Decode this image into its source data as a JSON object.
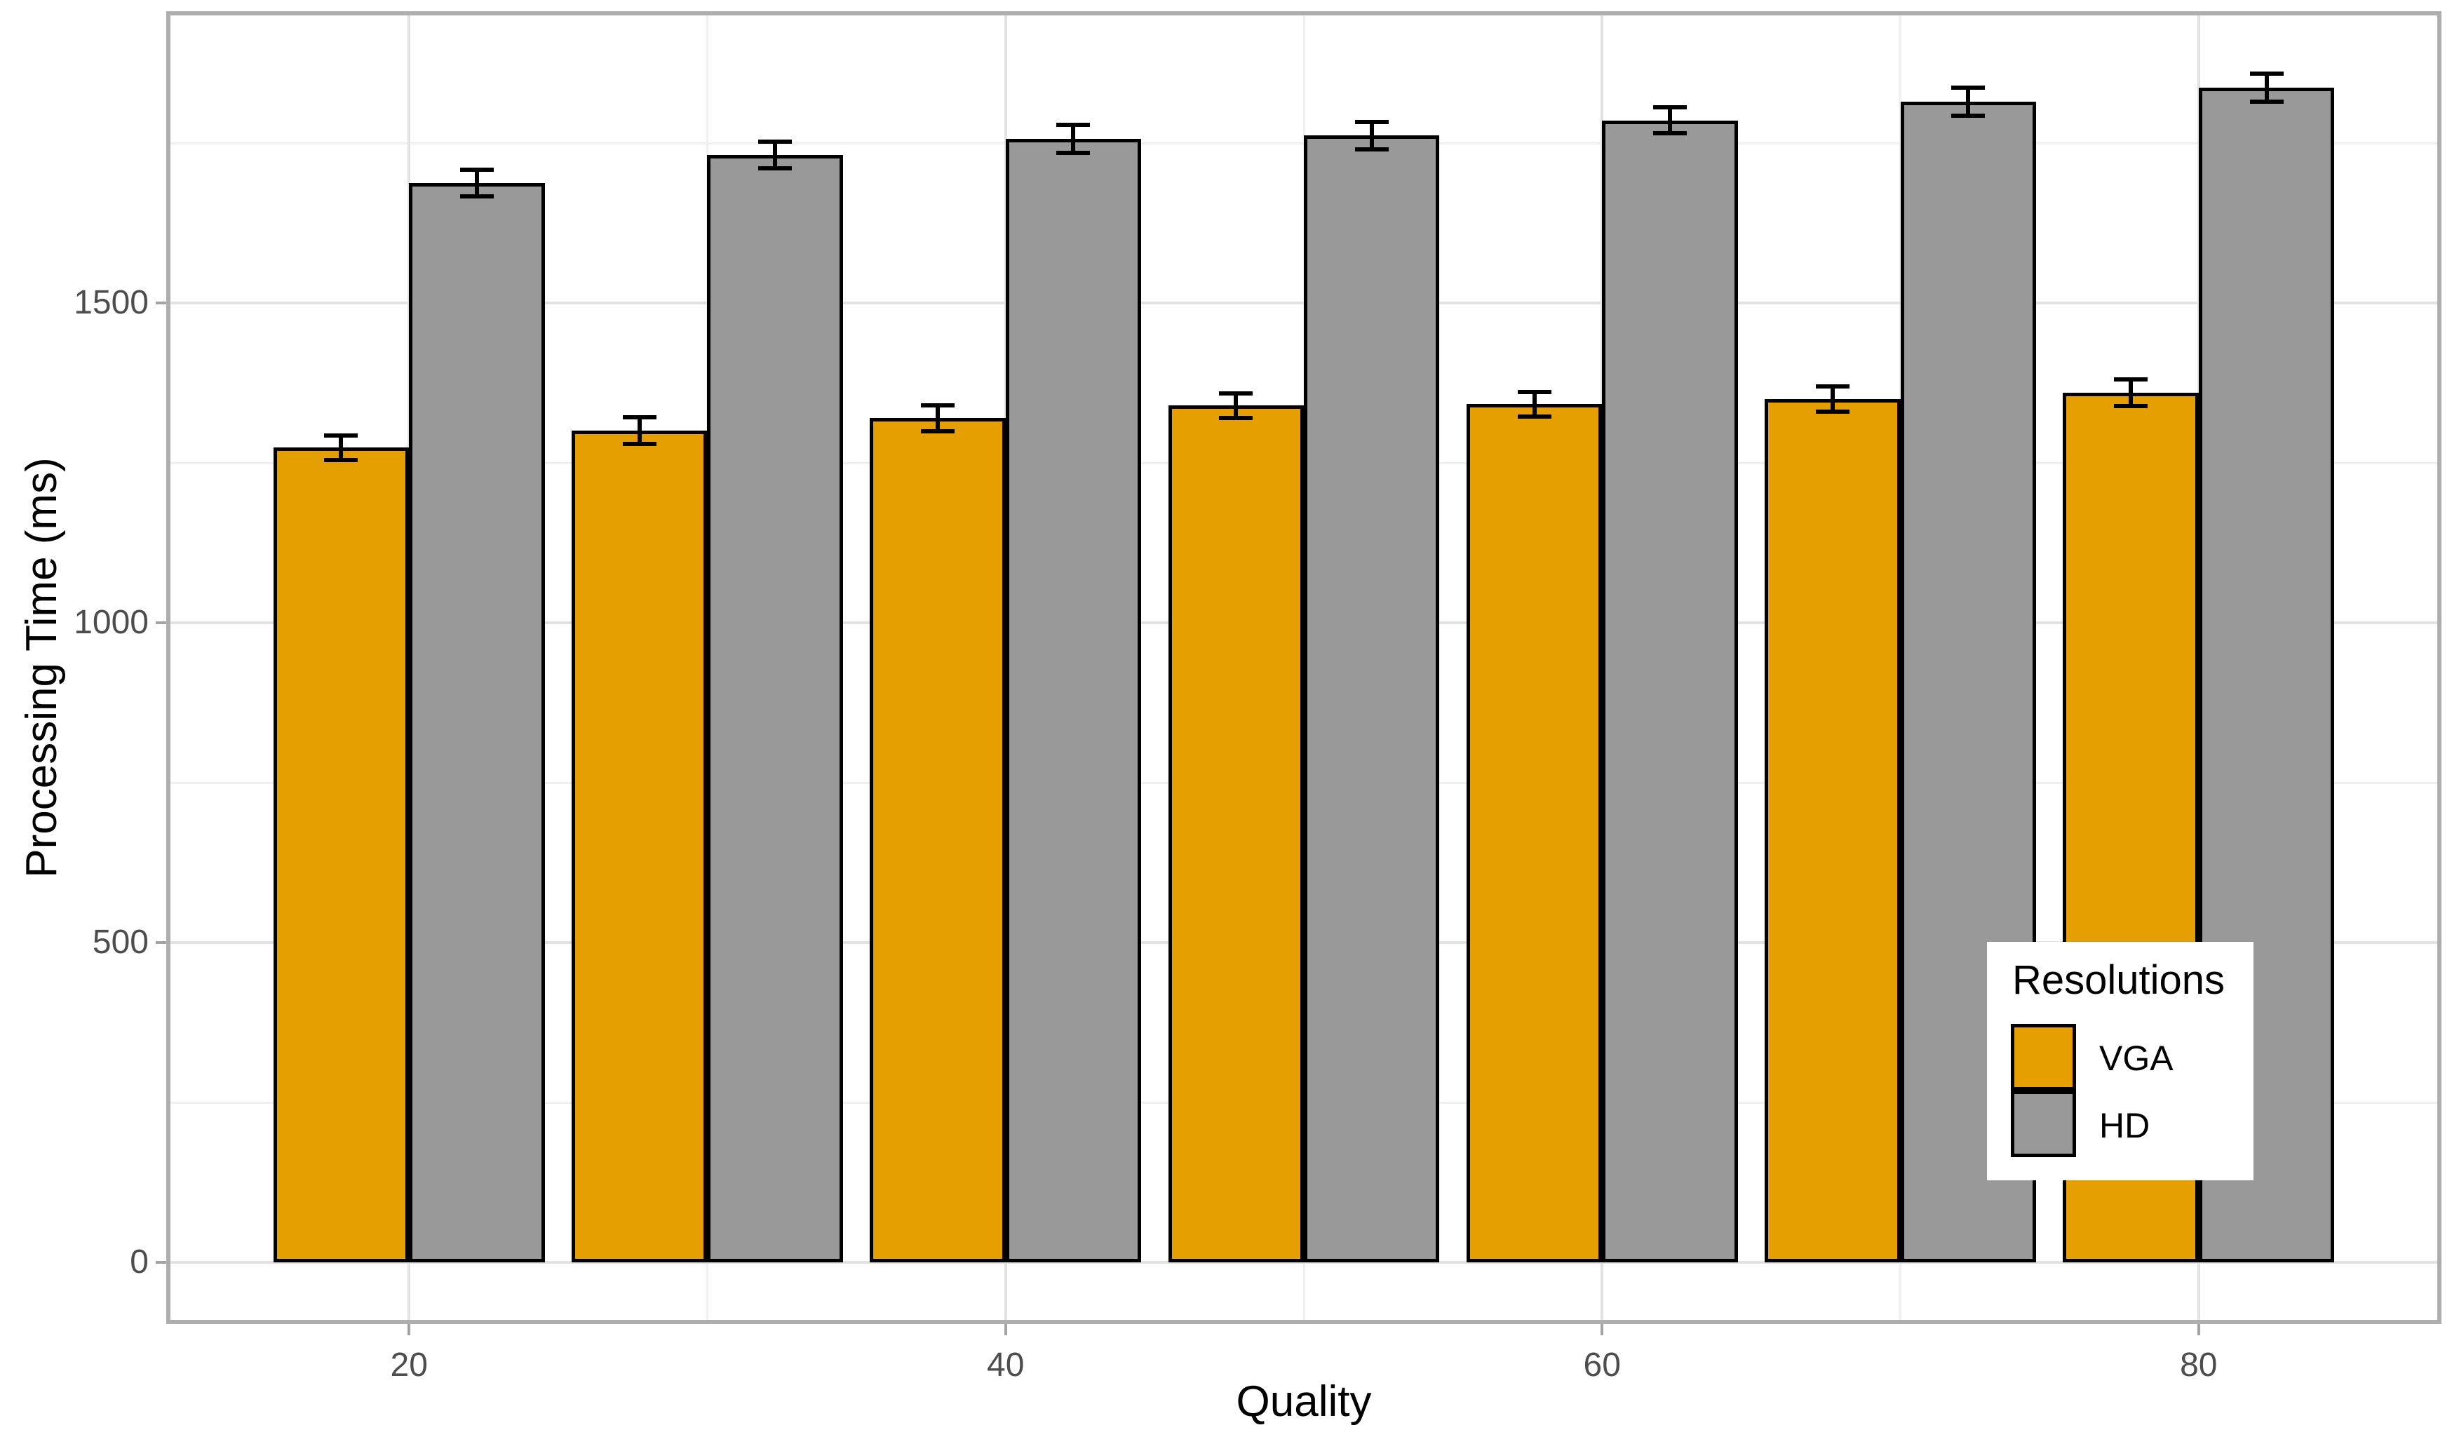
{
  "chart_data": {
    "type": "bar",
    "title": "",
    "xlabel": "Quality",
    "ylabel": "Processing Time (ms)",
    "legend_title": "Resolutions",
    "legend_position": "inside bottom-right",
    "grid": true,
    "categories": [
      20,
      30,
      40,
      50,
      60,
      70,
      80
    ],
    "series": [
      {
        "name": "VGA",
        "color": "#E69F00",
        "values": [
          1274,
          1301,
          1320,
          1340,
          1342,
          1350,
          1360
        ],
        "errors": [
          19,
          21,
          20,
          19,
          19,
          20,
          21
        ]
      },
      {
        "name": "HD",
        "color": "#999999",
        "values": [
          1688,
          1732,
          1757,
          1762,
          1786,
          1815,
          1837
        ],
        "errors": [
          21,
          21,
          22,
          21,
          20,
          22,
          22
        ]
      }
    ],
    "x_ticks_at": [
      20,
      40,
      60,
      80
    ],
    "x_tick_labels": [
      "20",
      "40",
      "60",
      "80"
    ],
    "x_minor_at": [
      30,
      50,
      70
    ],
    "y_ticks": [
      0,
      500,
      1000,
      1500
    ],
    "y_tick_labels": [
      "0",
      "500",
      "1000",
      "1500"
    ],
    "y_minor": [
      250,
      750,
      1250,
      1750
    ],
    "xlim": [
      12,
      88
    ],
    "ylim": [
      -90,
      1950
    ],
    "bar_width_units": 4.55,
    "error_bar_color": "#000000",
    "bar_outline_color": "#000000"
  }
}
